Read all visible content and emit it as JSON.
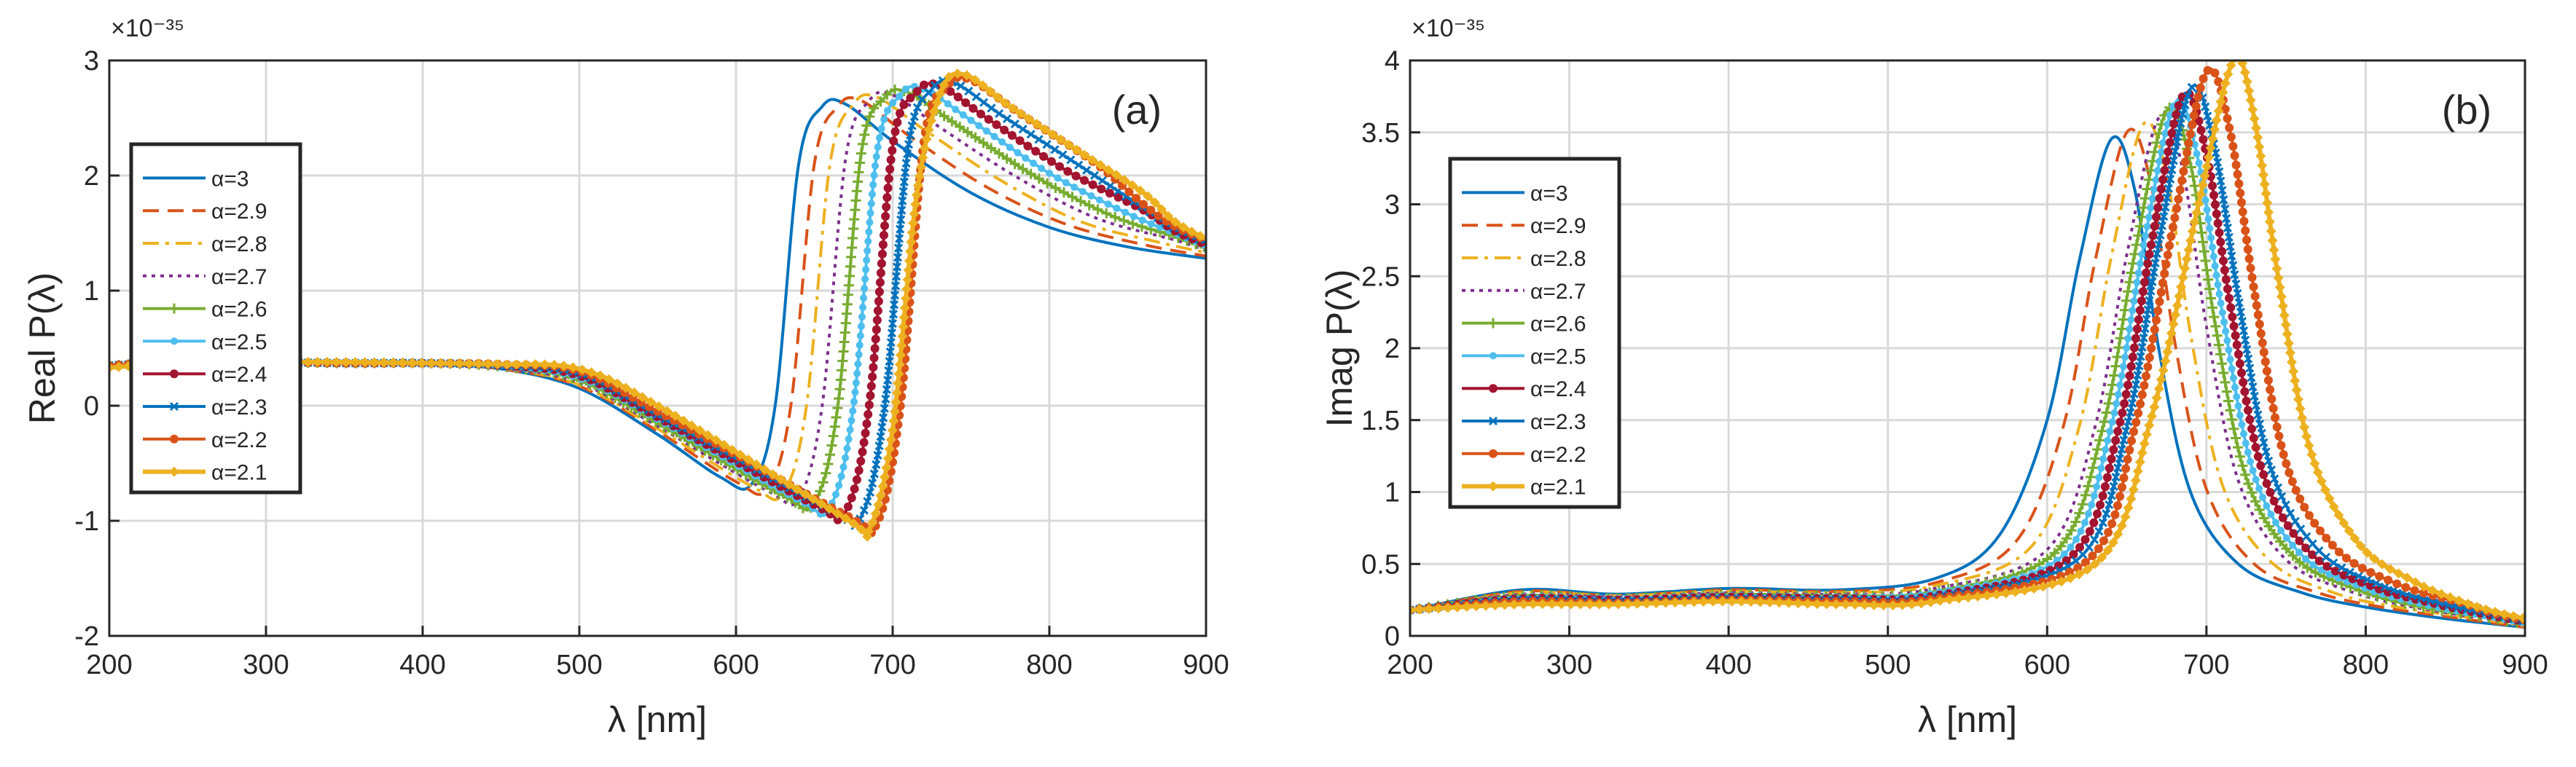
{
  "figure": {
    "panels": [
      {
        "label": "(a)",
        "exponent": "×10⁻³⁵"
      },
      {
        "label": "(b)",
        "exponent": "×10⁻³⁵"
      }
    ]
  },
  "colors": {
    "a3": "#0072BD",
    "a2.9": "#D95319",
    "a2.8": "#EDB120",
    "a2.7": "#7E2F8E",
    "a2.6": "#77AC30",
    "a2.5": "#4DBEEE",
    "a2.4": "#A2142F",
    "a2.3": "#0072BD",
    "a2.2": "#D95319",
    "a2.1": "#EDB120",
    "grid": "#d9d9d9",
    "axis": "#262626"
  },
  "chart_data": [
    {
      "type": "line",
      "panel": "(a)",
      "title": "",
      "xlabel": "λ [nm]",
      "ylabel": "Real  P(λ)",
      "y_exponent_label": "×10⁻³⁵",
      "xlim": [
        200,
        900
      ],
      "ylim": [
        -2,
        3
      ],
      "xticks": [
        200,
        300,
        400,
        500,
        600,
        700,
        800,
        900
      ],
      "yticks": [
        -2,
        -1,
        0,
        1,
        2,
        3
      ],
      "grid": true,
      "legend_position": "left",
      "series": [
        {
          "name": "α=3",
          "style": "solid",
          "marker": "none",
          "color": "#0072BD",
          "x": [
            200,
            250,
            300,
            350,
            400,
            450,
            500,
            550,
            590,
            610,
            625,
            640,
            655,
            670,
            700,
            750,
            800,
            850,
            900
          ],
          "y": [
            0.35,
            0.38,
            0.38,
            0.37,
            0.36,
            0.32,
            0.15,
            -0.25,
            -0.62,
            -0.68,
            0.0,
            2.1,
            2.6,
            2.62,
            2.3,
            1.85,
            1.55,
            1.38,
            1.28
          ]
        },
        {
          "name": "α=2.9",
          "style": "dash",
          "marker": "none",
          "color": "#D95319",
          "x": [
            200,
            250,
            300,
            350,
            400,
            450,
            500,
            550,
            600,
            620,
            635,
            650,
            665,
            680,
            710,
            760,
            810,
            860,
            900
          ],
          "y": [
            0.35,
            0.38,
            0.38,
            0.37,
            0.36,
            0.32,
            0.17,
            -0.22,
            -0.66,
            -0.72,
            0.0,
            2.1,
            2.6,
            2.65,
            2.35,
            1.9,
            1.58,
            1.4,
            1.3
          ]
        },
        {
          "name": "α=2.8",
          "style": "dashdot",
          "marker": "none",
          "color": "#EDB120",
          "x": [
            200,
            250,
            300,
            350,
            400,
            450,
            500,
            550,
            610,
            630,
            645,
            660,
            675,
            690,
            720,
            770,
            820,
            870,
            900
          ],
          "y": [
            0.35,
            0.38,
            0.38,
            0.37,
            0.36,
            0.33,
            0.18,
            -0.2,
            -0.7,
            -0.76,
            0.0,
            2.1,
            2.62,
            2.68,
            2.4,
            1.95,
            1.6,
            1.42,
            1.33
          ]
        },
        {
          "name": "α=2.7",
          "style": "dot",
          "marker": "none",
          "color": "#7E2F8E",
          "x": [
            200,
            250,
            300,
            350,
            400,
            450,
            500,
            550,
            620,
            640,
            655,
            670,
            685,
            700,
            730,
            780,
            830,
            880,
            900
          ],
          "y": [
            0.35,
            0.38,
            0.38,
            0.37,
            0.36,
            0.33,
            0.2,
            -0.18,
            -0.74,
            -0.8,
            0.0,
            2.15,
            2.65,
            2.7,
            2.42,
            1.98,
            1.63,
            1.44,
            1.35
          ]
        },
        {
          "name": "α=2.6",
          "style": "solid",
          "marker": "plus",
          "color": "#77AC30",
          "x": [
            200,
            250,
            300,
            350,
            400,
            450,
            500,
            550,
            630,
            650,
            665,
            680,
            695,
            710,
            740,
            790,
            840,
            880,
            900
          ],
          "y": [
            0.35,
            0.38,
            0.38,
            0.37,
            0.37,
            0.34,
            0.22,
            -0.15,
            -0.78,
            -0.84,
            0.0,
            2.2,
            2.68,
            2.72,
            2.45,
            2.0,
            1.65,
            1.47,
            1.37
          ]
        },
        {
          "name": "α=2.5",
          "style": "solid",
          "marker": "circle",
          "color": "#4DBEEE",
          "x": [
            200,
            250,
            300,
            350,
            400,
            450,
            500,
            550,
            640,
            660,
            675,
            690,
            705,
            720,
            750,
            800,
            850,
            880,
            900
          ],
          "y": [
            0.35,
            0.38,
            0.38,
            0.37,
            0.37,
            0.34,
            0.24,
            -0.12,
            -0.82,
            -0.88,
            0.0,
            2.2,
            2.7,
            2.75,
            2.48,
            2.02,
            1.67,
            1.5,
            1.39
          ]
        },
        {
          "name": "α=2.4",
          "style": "solid",
          "marker": "dot",
          "color": "#A2142F",
          "x": [
            200,
            250,
            300,
            350,
            400,
            450,
            500,
            550,
            650,
            670,
            685,
            700,
            715,
            730,
            760,
            810,
            860,
            880,
            900
          ],
          "y": [
            0.35,
            0.38,
            0.38,
            0.37,
            0.37,
            0.35,
            0.26,
            -0.1,
            -0.86,
            -0.92,
            0.0,
            2.25,
            2.72,
            2.78,
            2.5,
            2.05,
            1.7,
            1.52,
            1.4
          ]
        },
        {
          "name": "α=2.3",
          "style": "solid",
          "marker": "x",
          "color": "#0072BD",
          "x": [
            200,
            250,
            300,
            350,
            400,
            450,
            500,
            550,
            660,
            680,
            695,
            710,
            725,
            740,
            770,
            820,
            860,
            880,
            900
          ],
          "y": [
            0.35,
            0.38,
            0.38,
            0.37,
            0.37,
            0.35,
            0.28,
            -0.08,
            -0.9,
            -0.96,
            0.0,
            2.25,
            2.75,
            2.8,
            2.52,
            2.08,
            1.72,
            1.54,
            1.42
          ]
        },
        {
          "name": "α=2.2",
          "style": "solid",
          "marker": "dot",
          "color": "#D95319",
          "x": [
            200,
            250,
            300,
            350,
            400,
            450,
            500,
            550,
            670,
            690,
            705,
            720,
            735,
            750,
            780,
            830,
            860,
            880,
            900
          ],
          "y": [
            0.35,
            0.38,
            0.38,
            0.37,
            0.37,
            0.36,
            0.3,
            -0.05,
            -0.95,
            -1.02,
            0.0,
            2.3,
            2.78,
            2.83,
            2.55,
            2.1,
            1.75,
            1.56,
            1.44
          ]
        },
        {
          "name": "α=2.1",
          "style": "solid",
          "marker": "diamond",
          "color": "#EDB120",
          "x": [
            200,
            250,
            300,
            350,
            400,
            450,
            500,
            550,
            670,
            685,
            700,
            715,
            730,
            745,
            775,
            820,
            860,
            880,
            900
          ],
          "y": [
            0.33,
            0.38,
            0.38,
            0.38,
            0.37,
            0.36,
            0.32,
            0.0,
            -0.98,
            -1.08,
            -0.2,
            1.8,
            2.7,
            2.88,
            2.6,
            2.2,
            1.85,
            1.6,
            1.45
          ]
        }
      ]
    },
    {
      "type": "line",
      "panel": "(b)",
      "title": "",
      "xlabel": "λ [nm]",
      "ylabel": "Imag  P(λ)",
      "y_exponent_label": "×10⁻³⁵",
      "xlim": [
        200,
        900
      ],
      "ylim": [
        0,
        4
      ],
      "xticks": [
        200,
        300,
        400,
        500,
        600,
        700,
        800,
        900
      ],
      "yticks": [
        0,
        0.5,
        1,
        1.5,
        2,
        2.5,
        3,
        3.5,
        4
      ],
      "grid": true,
      "legend_position": "left",
      "series": [
        {
          "name": "α=3",
          "style": "solid",
          "marker": "none",
          "color": "#0072BD",
          "x": [
            200,
            270,
            330,
            400,
            470,
            530,
            570,
            600,
            620,
            640,
            655,
            670,
            690,
            720,
            760,
            800,
            850,
            900
          ],
          "y": [
            0.18,
            0.32,
            0.29,
            0.33,
            0.32,
            0.4,
            0.7,
            1.5,
            2.6,
            3.45,
            3.1,
            2.0,
            1.0,
            0.5,
            0.3,
            0.2,
            0.12,
            0.06
          ]
        },
        {
          "name": "α=2.9",
          "style": "dash",
          "marker": "none",
          "color": "#D95319",
          "x": [
            200,
            270,
            330,
            400,
            470,
            530,
            580,
            610,
            630,
            650,
            665,
            680,
            700,
            730,
            770,
            810,
            860,
            900
          ],
          "y": [
            0.18,
            0.31,
            0.28,
            0.32,
            0.31,
            0.37,
            0.65,
            1.45,
            2.6,
            3.5,
            3.15,
            2.05,
            1.02,
            0.5,
            0.3,
            0.2,
            0.12,
            0.06
          ]
        },
        {
          "name": "α=2.8",
          "style": "dashdot",
          "marker": "none",
          "color": "#EDB120",
          "x": [
            200,
            270,
            330,
            400,
            470,
            530,
            590,
            620,
            640,
            660,
            675,
            690,
            710,
            740,
            780,
            820,
            870,
            900
          ],
          "y": [
            0.18,
            0.3,
            0.28,
            0.31,
            0.3,
            0.35,
            0.62,
            1.45,
            2.62,
            3.55,
            3.2,
            2.1,
            1.05,
            0.52,
            0.3,
            0.2,
            0.12,
            0.07
          ]
        },
        {
          "name": "α=2.7",
          "style": "dot",
          "marker": "none",
          "color": "#7E2F8E",
          "x": [
            200,
            270,
            330,
            400,
            470,
            530,
            600,
            630,
            650,
            670,
            685,
            700,
            720,
            750,
            790,
            830,
            880,
            900
          ],
          "y": [
            0.18,
            0.29,
            0.27,
            0.3,
            0.29,
            0.33,
            0.6,
            1.45,
            2.65,
            3.6,
            3.25,
            2.15,
            1.08,
            0.53,
            0.31,
            0.2,
            0.11,
            0.08
          ]
        },
        {
          "name": "α=2.6",
          "style": "solid",
          "marker": "plus",
          "color": "#77AC30",
          "x": [
            200,
            270,
            330,
            400,
            470,
            530,
            605,
            635,
            655,
            675,
            690,
            705,
            725,
            755,
            795,
            835,
            880,
            900
          ],
          "y": [
            0.18,
            0.28,
            0.26,
            0.29,
            0.28,
            0.31,
            0.58,
            1.45,
            2.66,
            3.65,
            3.28,
            2.2,
            1.1,
            0.55,
            0.32,
            0.2,
            0.12,
            0.08
          ]
        },
        {
          "name": "α=2.5",
          "style": "solid",
          "marker": "circle",
          "color": "#4DBEEE",
          "x": [
            200,
            270,
            330,
            400,
            470,
            530,
            610,
            640,
            660,
            680,
            695,
            710,
            730,
            760,
            800,
            840,
            880,
            900
          ],
          "y": [
            0.18,
            0.27,
            0.26,
            0.28,
            0.27,
            0.3,
            0.56,
            1.45,
            2.68,
            3.7,
            3.3,
            2.25,
            1.12,
            0.56,
            0.33,
            0.21,
            0.13,
            0.09
          ]
        },
        {
          "name": "α=2.4",
          "style": "solid",
          "marker": "dot",
          "color": "#A2142F",
          "x": [
            200,
            270,
            330,
            400,
            470,
            530,
            615,
            645,
            665,
            685,
            700,
            715,
            735,
            765,
            805,
            845,
            880,
            900
          ],
          "y": [
            0.18,
            0.26,
            0.25,
            0.27,
            0.26,
            0.28,
            0.55,
            1.45,
            2.7,
            3.75,
            3.35,
            2.3,
            1.15,
            0.58,
            0.34,
            0.22,
            0.14,
            0.1
          ]
        },
        {
          "name": "α=2.3",
          "style": "solid",
          "marker": "x",
          "color": "#0072BD",
          "x": [
            200,
            270,
            330,
            400,
            470,
            530,
            620,
            650,
            670,
            690,
            705,
            720,
            740,
            770,
            810,
            850,
            880,
            900
          ],
          "y": [
            0.18,
            0.25,
            0.24,
            0.26,
            0.25,
            0.27,
            0.54,
            1.45,
            2.72,
            3.8,
            3.4,
            2.35,
            1.18,
            0.6,
            0.35,
            0.22,
            0.15,
            0.1
          ]
        },
        {
          "name": "α=2.2",
          "style": "solid",
          "marker": "dot",
          "color": "#D95319",
          "x": [
            200,
            270,
            330,
            400,
            470,
            530,
            625,
            655,
            680,
            700,
            715,
            730,
            750,
            780,
            820,
            860,
            880,
            900
          ],
          "y": [
            0.18,
            0.24,
            0.23,
            0.25,
            0.24,
            0.26,
            0.52,
            1.45,
            2.9,
            3.92,
            3.5,
            2.4,
            1.2,
            0.62,
            0.36,
            0.23,
            0.16,
            0.11
          ]
        },
        {
          "name": "α=2.1",
          "style": "solid",
          "marker": "diamond",
          "color": "#EDB120",
          "x": [
            200,
            270,
            330,
            400,
            470,
            530,
            630,
            665,
            695,
            717,
            730,
            745,
            765,
            795,
            830,
            860,
            880,
            900
          ],
          "y": [
            0.18,
            0.22,
            0.22,
            0.24,
            0.22,
            0.24,
            0.5,
            1.5,
            3.0,
            4.0,
            3.6,
            2.5,
            1.3,
            0.65,
            0.38,
            0.24,
            0.17,
            0.12
          ]
        }
      ]
    }
  ]
}
